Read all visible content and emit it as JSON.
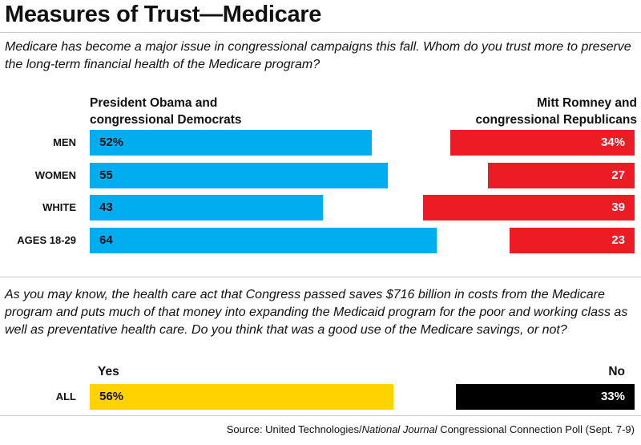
{
  "header": {
    "title": "Measures of Trust—Medicare"
  },
  "chart_data": [
    {
      "type": "bar",
      "question": "Medicare has become a major issue in congressional campaigns this fall. Whom do you trust more to preserve the long-term financial health of the Medicare program?",
      "categories": [
        "MEN",
        "WOMEN",
        "WHITE",
        "AGES 18-29"
      ],
      "series": [
        {
          "name_line1": "President Obama and",
          "name_line2": "congressional Democrats",
          "color": "#00aeef",
          "values": [
            52,
            55,
            43,
            64
          ],
          "labels": [
            "52%",
            "55",
            "43",
            "64"
          ]
        },
        {
          "name_line1": "Mitt Romney and",
          "name_line2": "congressional Republicans",
          "color": "#ed1c24",
          "values": [
            34,
            27,
            39,
            23
          ],
          "labels": [
            "34%",
            "27",
            "39",
            "23"
          ]
        }
      ],
      "value_unit": "%"
    },
    {
      "type": "bar",
      "question": "As you may know, the health care act that Congress passed saves $716 billion in costs from the Medicare program and puts much of that money into expanding the Medicaid program for the poor and working class as well as preventative health care. Do you think that was a good use of the Medicare savings, or not?",
      "categories": [
        "ALL"
      ],
      "series": [
        {
          "name": "Yes",
          "color": "#ffd200",
          "values": [
            56
          ],
          "labels": [
            "56%"
          ]
        },
        {
          "name": "No",
          "color": "#000000",
          "values": [
            33
          ],
          "labels": [
            "33%"
          ]
        }
      ],
      "value_unit": "%"
    }
  ],
  "footer": {
    "source_prefix": "Source: United Technologies/",
    "source_publication": "National Journal",
    "source_suffix": " Congressional Connection Poll (Sept. 7-9)"
  }
}
